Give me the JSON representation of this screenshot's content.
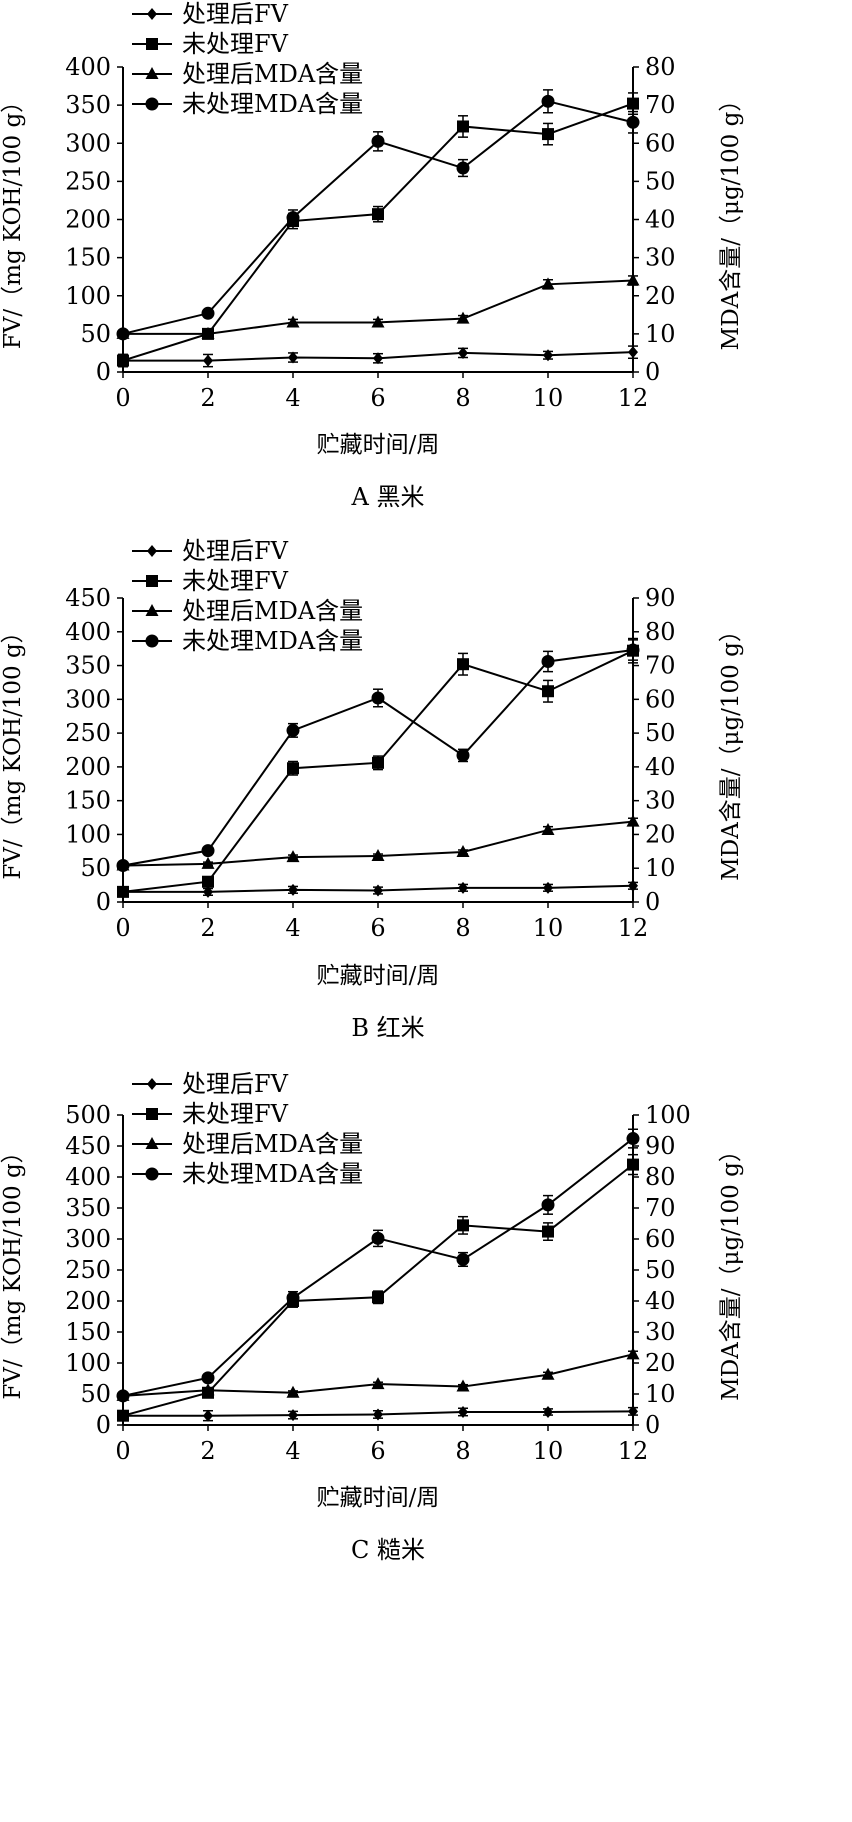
{
  "chart_data": [
    {
      "type": "line",
      "panel_label": "A 黑米",
      "xlabel": "贮藏时间/周",
      "ylabel": "FV/（mg KOH/100 g）",
      "y2label": "MDA含量/（μg/100 g）",
      "x": [
        0,
        2,
        4,
        6,
        8,
        10,
        12
      ],
      "xticks": [
        "0",
        "2",
        "4",
        "6",
        "8",
        "10",
        "12"
      ],
      "ylim": [
        0,
        400
      ],
      "yticks": [
        "0",
        "50",
        "100",
        "150",
        "200",
        "250",
        "300",
        "350",
        "400"
      ],
      "y2lim": [
        0,
        80
      ],
      "y2ticks": [
        "0",
        "10",
        "20",
        "30",
        "40",
        "50",
        "60",
        "70",
        "80"
      ],
      "legend_position": "top-left",
      "series": [
        {
          "name": "处理后FV",
          "marker": "diamond",
          "axis": "left",
          "values": [
            15,
            15,
            19,
            18,
            25,
            22,
            26
          ],
          "errors": [
            8,
            8,
            6,
            6,
            6,
            5,
            8
          ]
        },
        {
          "name": "未处理FV",
          "marker": "square",
          "axis": "left",
          "values": [
            15,
            50,
            198,
            207,
            322,
            312,
            352
          ],
          "errors": [
            8,
            6,
            10,
            10,
            14,
            14,
            14
          ]
        },
        {
          "name": "处理后MDA含量",
          "marker": "triangle",
          "axis": "right",
          "values": [
            10,
            10,
            13,
            13,
            14,
            23,
            24
          ],
          "errors": [
            0.5,
            0.5,
            0.8,
            0.8,
            0.8,
            1.2,
            1.2
          ]
        },
        {
          "name": "未处理MDA含量",
          "marker": "circle",
          "axis": "right",
          "values": [
            10,
            15.4,
            40.5,
            60.5,
            53.5,
            71,
            65.5
          ],
          "errors": [
            0.5,
            0.8,
            2,
            2.5,
            2.2,
            3,
            2.8
          ]
        }
      ]
    },
    {
      "type": "line",
      "panel_label": "B 红米",
      "xlabel": "贮藏时间/周",
      "ylabel": "FV/（mg KOH/100 g）",
      "y2label": "MDA含量/（μg/100 g）",
      "x": [
        0,
        2,
        4,
        6,
        8,
        10,
        12
      ],
      "xticks": [
        "0",
        "2",
        "4",
        "6",
        "8",
        "10",
        "12"
      ],
      "ylim": [
        0,
        450
      ],
      "yticks": [
        "0",
        "50",
        "100",
        "150",
        "200",
        "250",
        "300",
        "350",
        "400",
        "450"
      ],
      "y2lim": [
        0,
        90
      ],
      "y2ticks": [
        "0",
        "10",
        "20",
        "30",
        "40",
        "50",
        "60",
        "70",
        "80",
        "90"
      ],
      "legend_position": "top-left",
      "series": [
        {
          "name": "处理后FV",
          "marker": "diamond",
          "axis": "left",
          "values": [
            15,
            15,
            18,
            17,
            21,
            21,
            24
          ],
          "errors": [
            5,
            5,
            5,
            5,
            5,
            5,
            5
          ]
        },
        {
          "name": "未处理FV",
          "marker": "square",
          "axis": "left",
          "values": [
            15,
            30,
            198,
            206,
            352,
            312,
            372
          ],
          "errors": [
            6,
            6,
            10,
            10,
            16,
            16,
            18
          ]
        },
        {
          "name": "处理后MDA含量",
          "marker": "triangle",
          "axis": "right",
          "values": [
            10.8,
            11.3,
            13.3,
            13.6,
            14.8,
            21.3,
            23.8
          ],
          "errors": [
            0.5,
            0.5,
            0.6,
            0.6,
            0.6,
            1,
            1
          ]
        },
        {
          "name": "未处理MDA含量",
          "marker": "circle",
          "axis": "right",
          "values": [
            10.8,
            15.2,
            50.8,
            60.4,
            43.4,
            71.2,
            74.6
          ],
          "errors": [
            0.6,
            0.8,
            2,
            2.6,
            1.8,
            3,
            3
          ]
        }
      ]
    },
    {
      "type": "line",
      "panel_label": "C 糙米",
      "xlabel": "贮藏时间/周",
      "ylabel": "FV/（mg KOH/100 g）",
      "y2label": "MDA含量/（μg/100 g）",
      "x": [
        0,
        2,
        4,
        6,
        8,
        10,
        12
      ],
      "xticks": [
        "0",
        "2",
        "4",
        "6",
        "8",
        "10",
        "12"
      ],
      "ylim": [
        0,
        500
      ],
      "yticks": [
        "0",
        "50",
        "100",
        "150",
        "200",
        "250",
        "300",
        "350",
        "400",
        "450",
        "500"
      ],
      "y2lim": [
        0,
        100
      ],
      "y2ticks": [
        "0",
        "10",
        "20",
        "30",
        "40",
        "50",
        "60",
        "70",
        "80",
        "90",
        "100"
      ],
      "legend_position": "top-left",
      "series": [
        {
          "name": "处理后FV",
          "marker": "diamond",
          "axis": "left",
          "values": [
            15,
            15,
            16,
            17,
            21,
            21,
            22
          ],
          "errors": [
            8,
            8,
            6,
            6,
            6,
            5,
            6
          ]
        },
        {
          "name": "未处理FV",
          "marker": "square",
          "axis": "left",
          "values": [
            15,
            52,
            200,
            206,
            322,
            312,
            420
          ],
          "errors": [
            6,
            6,
            10,
            10,
            14,
            14,
            16
          ]
        },
        {
          "name": "处理后MDA含量",
          "marker": "triangle",
          "axis": "right",
          "values": [
            9.4,
            11.2,
            10.4,
            13.2,
            12.4,
            16.2,
            22.8
          ],
          "errors": [
            0.5,
            0.5,
            0.6,
            0.6,
            0.6,
            0.8,
            1
          ]
        },
        {
          "name": "未处理MDA含量",
          "marker": "circle",
          "axis": "right",
          "values": [
            9.4,
            15.2,
            41,
            60.2,
            53.4,
            71,
            92.4
          ],
          "errors": [
            0.5,
            0.8,
            2,
            2.6,
            2.2,
            3,
            3
          ]
        }
      ]
    }
  ]
}
